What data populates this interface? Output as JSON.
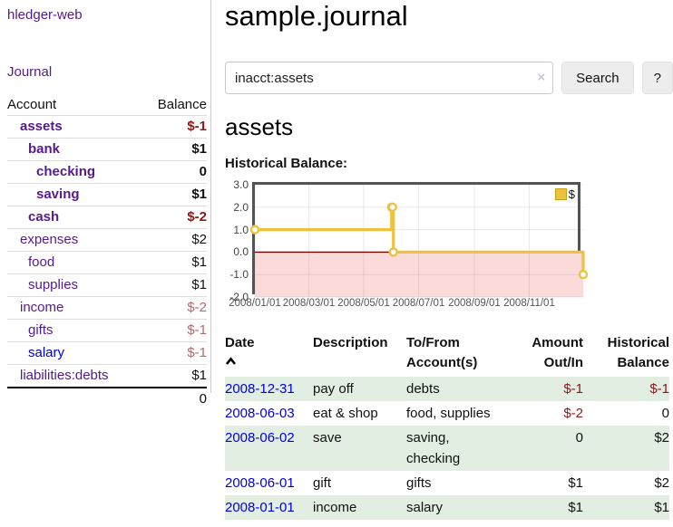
{
  "sidebar": {
    "app_title": "hledger-web",
    "journal_link": "Journal",
    "accounts_table": {
      "headers": [
        "Account",
        "Balance"
      ],
      "accounts": [
        {
          "name": "assets",
          "indent": 1,
          "emph": true,
          "visited": true,
          "balance": "$-1",
          "tone": "strong"
        },
        {
          "name": "bank",
          "indent": 2,
          "emph": true,
          "visited": true,
          "balance": "$1",
          "tone": null
        },
        {
          "name": "checking",
          "indent": 3,
          "emph": true,
          "visited": true,
          "balance": "0",
          "tone": null
        },
        {
          "name": "saving",
          "indent": 3,
          "emph": true,
          "visited": true,
          "balance": "$1",
          "tone": null
        },
        {
          "name": "cash",
          "indent": 2,
          "emph": true,
          "visited": true,
          "balance": "$-2",
          "tone": "strong"
        },
        {
          "name": "expenses",
          "indent": 1,
          "emph": false,
          "visited": true,
          "balance": "$2",
          "tone": null
        },
        {
          "name": "food",
          "indent": 2,
          "emph": false,
          "visited": true,
          "balance": "$1",
          "tone": null
        },
        {
          "name": "supplies",
          "indent": 2,
          "emph": false,
          "visited": true,
          "balance": "$1",
          "tone": null
        },
        {
          "name": "income",
          "indent": 1,
          "emph": false,
          "visited": true,
          "balance": "$-2",
          "tone": "soft"
        },
        {
          "name": "gifts",
          "indent": 2,
          "emph": false,
          "visited": true,
          "balance": "$-1",
          "tone": "soft"
        },
        {
          "name": "salary",
          "indent": 2,
          "emph": false,
          "visited": false,
          "balance": "$-1",
          "tone": "soft"
        },
        {
          "name": "liabilities:debts",
          "indent": 1,
          "emph": false,
          "visited": true,
          "balance": "$1",
          "tone": null
        }
      ],
      "total": "0"
    }
  },
  "main": {
    "title": "sample.journal",
    "search": {
      "value": "inacct:assets",
      "clear_icon": "×",
      "search_button": "Search",
      "help_button": "?"
    },
    "account_heading": "assets",
    "chart_heading": "Historical Balance:",
    "transactions_table": {
      "headers": {
        "date": "Date",
        "description": "Description",
        "tofrom": "To/From\nAccount(s)",
        "amount": "Amount\nOut/In",
        "balance": "Historical\nBalance"
      },
      "rows": [
        {
          "date": "2008-12-31",
          "description": "pay off",
          "accounts": "debts",
          "amount": "$-1",
          "amount_tone": "neg",
          "balance": "$-1",
          "balance_tone": "neg"
        },
        {
          "date": "2008-06-03",
          "description": "eat & shop",
          "accounts": "food, supplies",
          "amount": "$-2",
          "amount_tone": "neg",
          "balance": "0",
          "balance_tone": null
        },
        {
          "date": "2008-06-02",
          "description": "save",
          "accounts": "saving, checking",
          "amount": "0",
          "amount_tone": null,
          "balance": "$2",
          "balance_tone": null
        },
        {
          "date": "2008-06-01",
          "description": "gift",
          "accounts": "gifts",
          "amount": "$1",
          "amount_tone": null,
          "balance": "$2",
          "balance_tone": null
        },
        {
          "date": "2008-01-01",
          "description": "income",
          "accounts": "salary",
          "amount": "$1",
          "amount_tone": null,
          "balance": "$1",
          "balance_tone": null
        }
      ]
    }
  },
  "chart_data": {
    "type": "line",
    "title": "Historical Balance:",
    "steps": true,
    "series": [
      {
        "name": "$",
        "color": "#edc240",
        "points": [
          [
            "2008-01-01",
            1
          ],
          [
            "2008-06-01",
            2
          ],
          [
            "2008-06-02",
            2
          ],
          [
            "2008-06-03",
            0
          ],
          [
            "2008-12-31",
            -1
          ]
        ]
      }
    ],
    "xlim": [
      "2008-01-01",
      "2008-12-31"
    ],
    "ylim": [
      -2,
      3
    ],
    "x_tick_labels": [
      "2008/01/01",
      "2008/03/01",
      "2008/05/01",
      "2008/07/01",
      "2008/09/01",
      "2008/11/01"
    ],
    "y_tick_labels": [
      "3.0",
      "2.0",
      "1.0",
      "0.0",
      "-1.0",
      "-2.0"
    ],
    "legend": {
      "label": "$",
      "position": "top-right"
    },
    "grid": true,
    "negative_region_fill": "#fbdada",
    "zero_line_color": "#800000",
    "point_fill": "#ffffff"
  },
  "colors": {
    "link_purple": "#551a8b",
    "link_blue": "#0000dd",
    "negative_strong": "#8c1717",
    "negative_soft": "#b36a6a",
    "row_stripe_green": "#e2eee2",
    "chart_line_yellow": "#edc240",
    "button_bg": "#ededed"
  }
}
